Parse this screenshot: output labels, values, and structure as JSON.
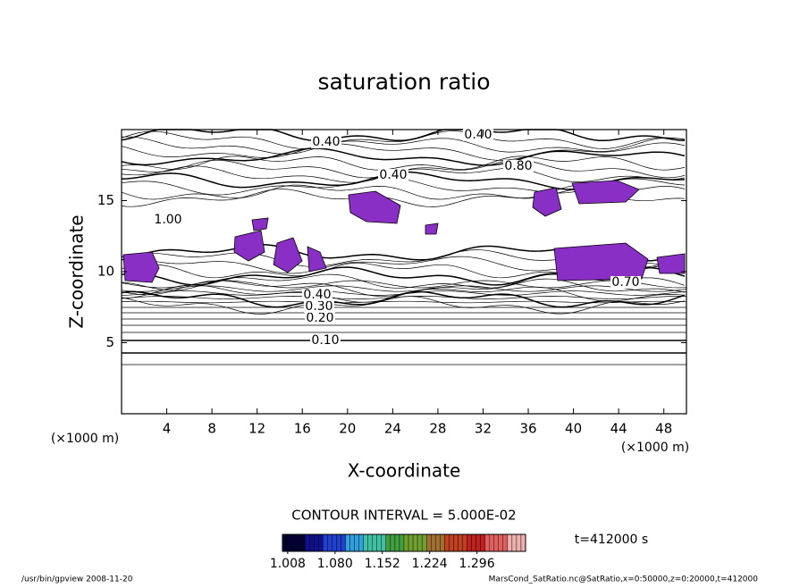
{
  "chart_data": {
    "type": "contour",
    "title": "saturation ratio",
    "x_label": "X-coordinate",
    "y_label": "Z-coordinate",
    "x_unit": "(×1000 m)",
    "y_unit": "(×1000 m)",
    "xlim": [
      0,
      50
    ],
    "xticks": [
      4,
      8,
      12,
      16,
      20,
      24,
      28,
      32,
      36,
      40,
      44,
      48
    ],
    "ylim": [
      0,
      20
    ],
    "yticks": [
      5,
      10,
      15
    ],
    "contour_interval": "CONTOUR INTERVAL = 5.000E-02",
    "contour_labels": [
      {
        "value": 0.1,
        "label": "0.10"
      },
      {
        "value": 0.2,
        "label": "0.20"
      },
      {
        "value": 0.3,
        "label": "0.30"
      },
      {
        "value": 0.4,
        "label": "0.40"
      },
      {
        "value": 0.4,
        "label": "0.40"
      },
      {
        "value": 0.4,
        "label": "0.40"
      },
      {
        "value": 0.4,
        "label": "0.40"
      },
      {
        "value": 0.8,
        "label": "0.80"
      },
      {
        "value": 1.0,
        "label": "1.00"
      },
      {
        "value": 0.7,
        "label": "0.70"
      }
    ],
    "fill_color": "#8a2fc6",
    "clim": [
      1.0,
      1.37
    ],
    "cticks": [
      1.008,
      {
        "value": 1.08,
        "label": "1.080"
      },
      1.152,
      1.224,
      1.296
    ],
    "time_label": "t=412000 s",
    "footer_left": "/usr/bin/gpview  2008-11-20",
    "footer_right": "MarsCond_SatRatio.nc@SatRatio,x=0:50000,z=0:20000,t=412000"
  }
}
